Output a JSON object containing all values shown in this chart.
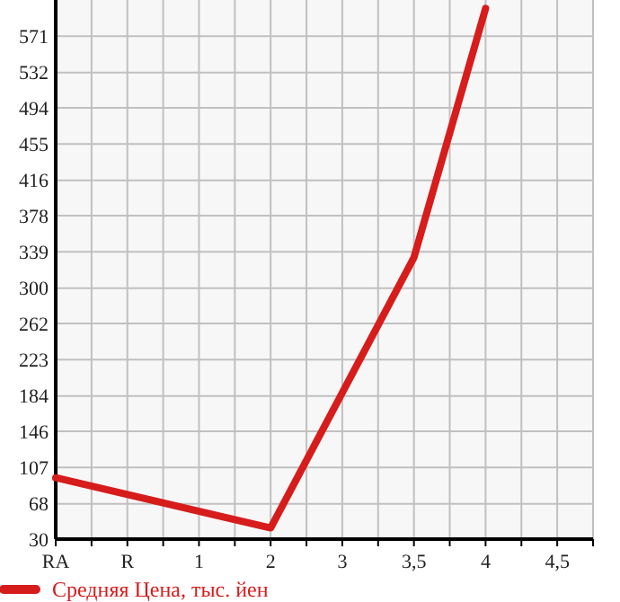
{
  "chart_data": {
    "type": "line",
    "categories": [
      "RA",
      "R",
      "1",
      "2",
      "3",
      "3,5",
      "4",
      "4,5"
    ],
    "series": [
      {
        "name": "Средняя Цена, тыс. йен",
        "color": "#d71c1c",
        "values": [
          96,
          null,
          null,
          42,
          null,
          333,
          601,
          null
        ]
      }
    ],
    "ylim": [
      30,
      610
    ],
    "yticks": [
      30,
      68,
      107,
      146,
      184,
      223,
      262,
      300,
      339,
      378,
      416,
      455,
      494,
      532,
      571
    ],
    "grid": true,
    "legend": "bottom",
    "marker": "none"
  }
}
